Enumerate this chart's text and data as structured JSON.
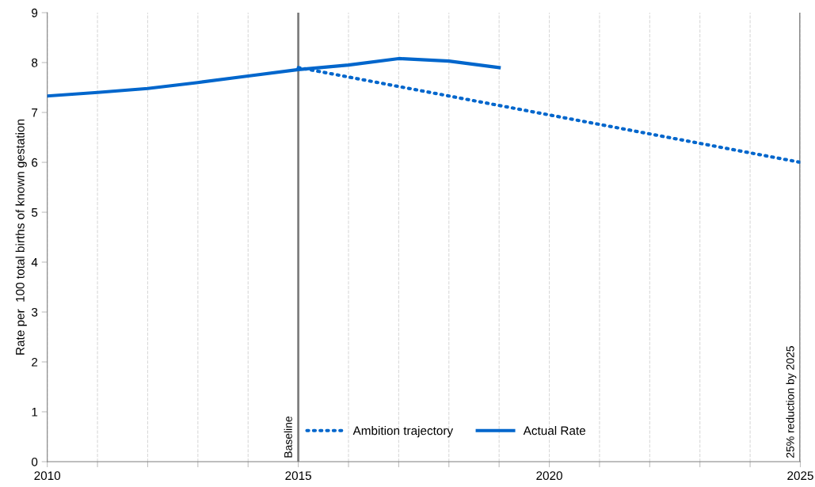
{
  "chart_data": {
    "type": "line",
    "ylabel": "Rate per  100 total births of known gestation",
    "xlim": [
      2010,
      2025
    ],
    "ylim": [
      0,
      9
    ],
    "xticks": [
      2010,
      {
        "value": 2011,
        "label": null
      },
      {
        "value": 2012,
        "label": null
      },
      {
        "value": 2013,
        "label": null
      },
      {
        "value": 2014,
        "label": null
      },
      2015,
      {
        "value": 2016,
        "label": null
      },
      {
        "value": 2017,
        "label": null
      },
      {
        "value": 2018,
        "label": null
      },
      {
        "value": 2019,
        "label": null
      },
      2020,
      {
        "value": 2021,
        "label": null
      },
      {
        "value": 2022,
        "label": null
      },
      {
        "value": 2023,
        "label": null
      },
      {
        "value": 2024,
        "label": null
      },
      2025
    ],
    "yticks": [
      0,
      1,
      2,
      3,
      4,
      5,
      6,
      7,
      8,
      9
    ],
    "grid": "x",
    "legend": "bottom",
    "series": [
      {
        "name": "Ambition trajectory",
        "color": "#0066cc",
        "line_style": "dotted",
        "x": [
          2015,
          2025
        ],
        "values": [
          7.9,
          6.0
        ]
      },
      {
        "name": "Actual Rate",
        "color": "#0066cc",
        "line_style": "solid",
        "x": [
          2010,
          2011,
          2012,
          2013,
          2014,
          2015,
          2016,
          2017,
          2018,
          2019
        ],
        "values": [
          7.33,
          7.4,
          7.48,
          7.6,
          7.73,
          7.86,
          7.95,
          8.08,
          8.03,
          7.9
        ]
      }
    ],
    "ref_lines": [
      {
        "axis": "x",
        "value": 2015,
        "label": "Baseline",
        "color": "#7f7f7f"
      },
      {
        "axis": "x",
        "value": 2025,
        "label": "25% reduction by 2025",
        "color": "#7f7f7f"
      }
    ]
  }
}
